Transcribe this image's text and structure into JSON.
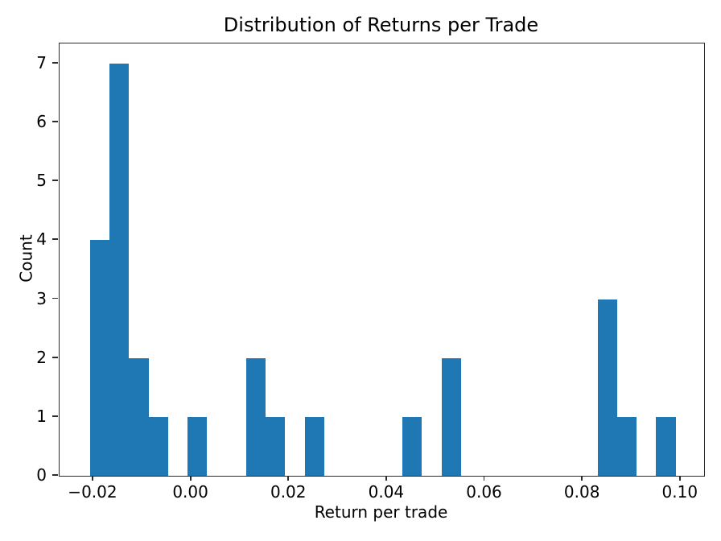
{
  "chart_data": {
    "type": "bar",
    "subtype": "histogram",
    "title": "Distribution of Returns per Trade",
    "xlabel": "Return per trade",
    "ylabel": "Count",
    "bar_color": "#1f77b4",
    "spine_color": "#2b2b2b",
    "background_color": "#ffffff",
    "grid": false,
    "legend": null,
    "bin_start": -0.0207,
    "bin_width": 0.00399,
    "counts": [
      4,
      7,
      2,
      1,
      0,
      1,
      0,
      0,
      2,
      1,
      0,
      1,
      0,
      0,
      0,
      0,
      1,
      0,
      2,
      0,
      0,
      0,
      0,
      0,
      0,
      0,
      3,
      1,
      0,
      1
    ],
    "total_trades": 27,
    "max_count": 7,
    "xlim": [
      -0.0269,
      0.1048
    ],
    "ylim": [
      0,
      7.34
    ],
    "xticks": [
      -0.02,
      0.0,
      0.02,
      0.04,
      0.06,
      0.08,
      0.1
    ],
    "xtick_labels": [
      "−0.02",
      "0.00",
      "0.02",
      "0.04",
      "0.06",
      "0.08",
      "0.10"
    ],
    "yticks": [
      0,
      1,
      2,
      3,
      4,
      5,
      6,
      7
    ],
    "ytick_labels": [
      "0",
      "1",
      "2",
      "3",
      "4",
      "5",
      "6",
      "7"
    ]
  }
}
